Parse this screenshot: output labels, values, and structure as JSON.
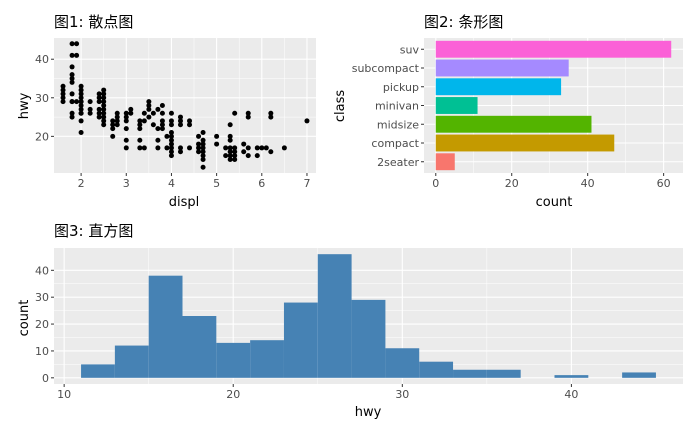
{
  "chart_data": [
    {
      "type": "scatter",
      "title": "图1: 散点图",
      "xlabel": "displ",
      "ylabel": "hwy",
      "xlim": [
        1.4,
        7.2
      ],
      "ylim": [
        10.5,
        45.5
      ],
      "xticks": [
        2,
        3,
        4,
        5,
        6,
        7
      ],
      "yticks": [
        20,
        30,
        40
      ],
      "grid": true,
      "points": [
        [
          1.6,
          33
        ],
        [
          1.6,
          32
        ],
        [
          1.6,
          31
        ],
        [
          1.6,
          29
        ],
        [
          1.6,
          30
        ],
        [
          1.8,
          29
        ],
        [
          1.8,
          29
        ],
        [
          1.8,
          31
        ],
        [
          1.8,
          26
        ],
        [
          1.8,
          25
        ],
        [
          1.8,
          34
        ],
        [
          1.8,
          36
        ],
        [
          1.8,
          35
        ],
        [
          1.8,
          38
        ],
        [
          1.8,
          41
        ],
        [
          1.8,
          44
        ],
        [
          1.9,
          44
        ],
        [
          1.9,
          41
        ],
        [
          1.9,
          29
        ],
        [
          2.0,
          31
        ],
        [
          2.0,
          30
        ],
        [
          2.0,
          26
        ],
        [
          2.0,
          28
        ],
        [
          2.0,
          29
        ],
        [
          2.0,
          26
        ],
        [
          2.0,
          24
        ],
        [
          2.0,
          21
        ],
        [
          2.0,
          29
        ],
        [
          2.0,
          27
        ],
        [
          2.0,
          33
        ],
        [
          2.0,
          32
        ],
        [
          2.2,
          26
        ],
        [
          2.2,
          27
        ],
        [
          2.2,
          29
        ],
        [
          2.4,
          30
        ],
        [
          2.4,
          31
        ],
        [
          2.4,
          27
        ],
        [
          2.4,
          29
        ],
        [
          2.4,
          26
        ],
        [
          2.4,
          25
        ],
        [
          2.5,
          32
        ],
        [
          2.5,
          30
        ],
        [
          2.5,
          29
        ],
        [
          2.5,
          27
        ],
        [
          2.5,
          26
        ],
        [
          2.5,
          25
        ],
        [
          2.5,
          24
        ],
        [
          2.5,
          23
        ],
        [
          2.5,
          28
        ],
        [
          2.5,
          31
        ],
        [
          2.7,
          20
        ],
        [
          2.7,
          22
        ],
        [
          2.7,
          24
        ],
        [
          2.7,
          23
        ],
        [
          2.8,
          26
        ],
        [
          2.8,
          25
        ],
        [
          2.8,
          24
        ],
        [
          2.8,
          23
        ],
        [
          3.0,
          25
        ],
        [
          3.0,
          26
        ],
        [
          3.0,
          24
        ],
        [
          3.0,
          22
        ],
        [
          3.0,
          17
        ],
        [
          3.0,
          19
        ],
        [
          3.1,
          26
        ],
        [
          3.1,
          27
        ],
        [
          3.3,
          24
        ],
        [
          3.3,
          23
        ],
        [
          3.3,
          22
        ],
        [
          3.3,
          17
        ],
        [
          3.3,
          19
        ],
        [
          3.4,
          26
        ],
        [
          3.4,
          24
        ],
        [
          3.4,
          17
        ],
        [
          3.5,
          25
        ],
        [
          3.5,
          27
        ],
        [
          3.5,
          29
        ],
        [
          3.5,
          28
        ],
        [
          3.6,
          23
        ],
        [
          3.6,
          26
        ],
        [
          3.7,
          22
        ],
        [
          3.7,
          17
        ],
        [
          3.7,
          19
        ],
        [
          3.7,
          27
        ],
        [
          3.8,
          26
        ],
        [
          3.8,
          24
        ],
        [
          3.8,
          22
        ],
        [
          3.8,
          28
        ],
        [
          3.8,
          23
        ],
        [
          3.9,
          20
        ],
        [
          3.9,
          17
        ],
        [
          4.0,
          26
        ],
        [
          4.0,
          24
        ],
        [
          4.0,
          20
        ],
        [
          4.0,
          19
        ],
        [
          4.0,
          17
        ],
        [
          4.0,
          16
        ],
        [
          4.0,
          18
        ],
        [
          4.0,
          15
        ],
        [
          4.0,
          23
        ],
        [
          4.0,
          21
        ],
        [
          4.2,
          25
        ],
        [
          4.2,
          24
        ],
        [
          4.2,
          23
        ],
        [
          4.2,
          17
        ],
        [
          4.2,
          16
        ],
        [
          4.4,
          24
        ],
        [
          4.4,
          23
        ],
        [
          4.4,
          17
        ],
        [
          4.6,
          20
        ],
        [
          4.6,
          18
        ],
        [
          4.6,
          17
        ],
        [
          4.6,
          16
        ],
        [
          4.7,
          21
        ],
        [
          4.7,
          19
        ],
        [
          4.7,
          17
        ],
        [
          4.7,
          15
        ],
        [
          4.7,
          14
        ],
        [
          4.7,
          12
        ],
        [
          4.7,
          18
        ],
        [
          4.7,
          16
        ],
        [
          5.0,
          20
        ],
        [
          5.0,
          18
        ],
        [
          5.2,
          17
        ],
        [
          5.2,
          15
        ],
        [
          5.3,
          23
        ],
        [
          5.3,
          20
        ],
        [
          5.3,
          19
        ],
        [
          5.3,
          17
        ],
        [
          5.3,
          16
        ],
        [
          5.3,
          15
        ],
        [
          5.3,
          14
        ],
        [
          5.4,
          26
        ],
        [
          5.4,
          17
        ],
        [
          5.4,
          16
        ],
        [
          5.4,
          15
        ],
        [
          5.4,
          14
        ],
        [
          5.6,
          18
        ],
        [
          5.6,
          16
        ],
        [
          5.7,
          26
        ],
        [
          5.7,
          25
        ],
        [
          5.7,
          17
        ],
        [
          5.7,
          15
        ],
        [
          5.9,
          17
        ],
        [
          5.9,
          15
        ],
        [
          6.0,
          17
        ],
        [
          6.1,
          17
        ],
        [
          6.2,
          26
        ],
        [
          6.2,
          25
        ],
        [
          6.2,
          16
        ],
        [
          6.5,
          17
        ],
        [
          7.0,
          24
        ]
      ]
    },
    {
      "type": "bar",
      "orientation": "horizontal",
      "title": "图2: 条形图",
      "xlabel": "count",
      "ylabel": "class",
      "xlim": [
        -3.1,
        65.1
      ],
      "xticks": [
        0,
        20,
        40,
        60
      ],
      "grid": true,
      "categories": [
        "2seater",
        "compact",
        "midsize",
        "minivan",
        "pickup",
        "subcompact",
        "suv"
      ],
      "values": [
        5,
        47,
        41,
        11,
        33,
        35,
        62
      ],
      "colors": [
        "#F8766D",
        "#C49A00",
        "#53B400",
        "#00C094",
        "#00B6EB",
        "#A58AFF",
        "#FB61D7"
      ]
    },
    {
      "type": "histogram",
      "title": "图3: 直方图",
      "xlabel": "hwy",
      "ylabel": "count",
      "xlim": [
        9.4,
        46.6
      ],
      "ylim": [
        -2.3,
        48.3
      ],
      "xticks": [
        10,
        20,
        30,
        40
      ],
      "yticks": [
        0,
        10,
        20,
        30,
        40
      ],
      "grid": true,
      "bar_color": "#4682B4",
      "bins": [
        {
          "x0": 11,
          "x1": 13,
          "count": 5
        },
        {
          "x0": 13,
          "x1": 15,
          "count": 12
        },
        {
          "x0": 15,
          "x1": 17,
          "count": 38
        },
        {
          "x0": 17,
          "x1": 19,
          "count": 23
        },
        {
          "x0": 19,
          "x1": 21,
          "count": 13
        },
        {
          "x0": 21,
          "x1": 23,
          "count": 14
        },
        {
          "x0": 23,
          "x1": 25,
          "count": 28
        },
        {
          "x0": 25,
          "x1": 27,
          "count": 46
        },
        {
          "x0": 27,
          "x1": 29,
          "count": 29
        },
        {
          "x0": 29,
          "x1": 31,
          "count": 11
        },
        {
          "x0": 31,
          "x1": 33,
          "count": 6
        },
        {
          "x0": 33,
          "x1": 35,
          "count": 3
        },
        {
          "x0": 35,
          "x1": 37,
          "count": 3
        },
        {
          "x0": 37,
          "x1": 39,
          "count": 0
        },
        {
          "x0": 39,
          "x1": 41,
          "count": 1
        },
        {
          "x0": 41,
          "x1": 43,
          "count": 0
        },
        {
          "x0": 43,
          "x1": 45,
          "count": 2
        }
      ]
    }
  ]
}
